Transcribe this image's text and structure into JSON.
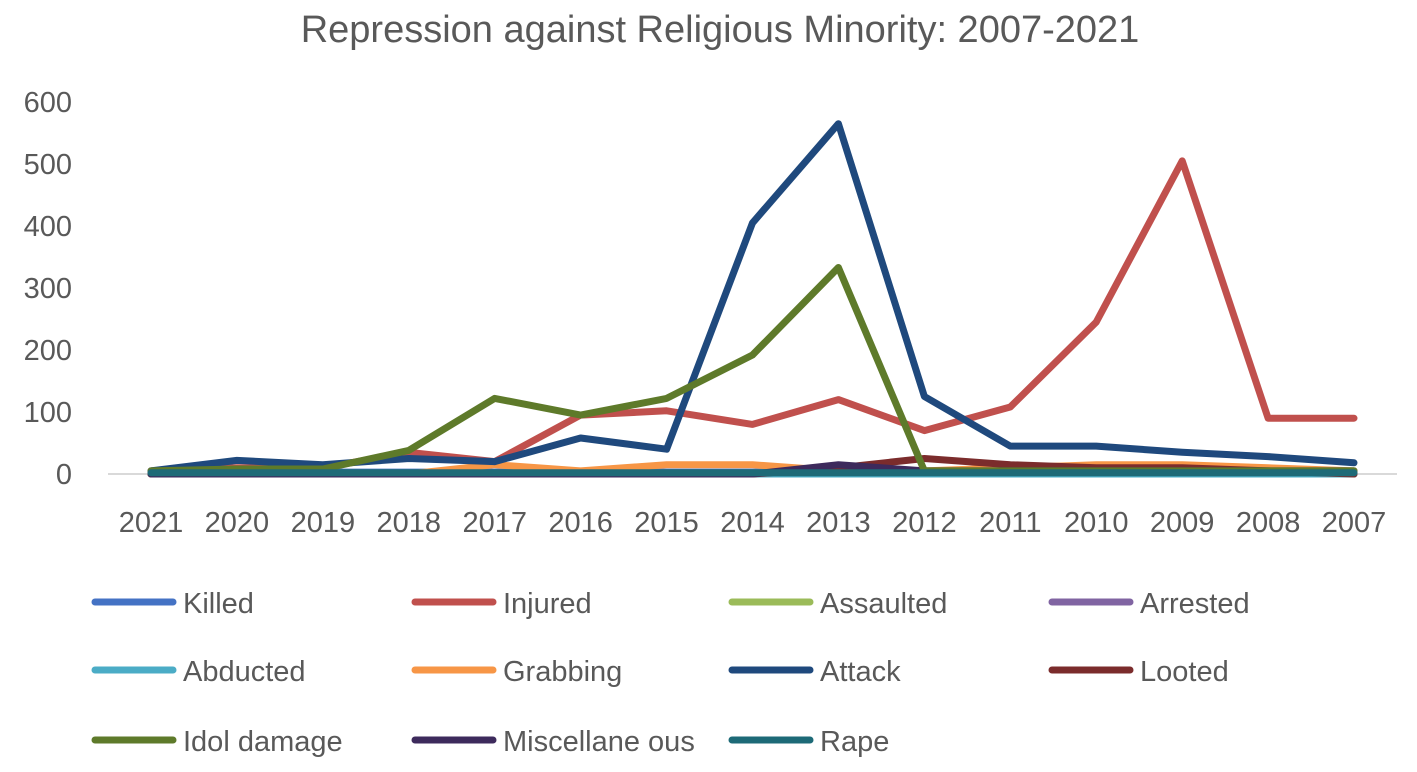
{
  "chart_data": {
    "type": "line",
    "title": "Repression against Religious Minority: 2007-2021",
    "xlabel": "",
    "ylabel": "",
    "ylim": [
      0,
      600
    ],
    "yticks": [
      "0",
      "100",
      "200",
      "300",
      "400",
      "500",
      "600"
    ],
    "grid": false,
    "legend_position": "bottom",
    "categories": [
      "2021",
      "2020",
      "2019",
      "2018",
      "2017",
      "2016",
      "2015",
      "2014",
      "2013",
      "2012",
      "2011",
      "2010",
      "2009",
      "2008",
      "2007"
    ],
    "series": [
      {
        "name": "Killed",
        "color": "#4472C4",
        "values": [
          2,
          3,
          3,
          3,
          3,
          3,
          3,
          3,
          3,
          3,
          3,
          3,
          3,
          3,
          3
        ]
      },
      {
        "name": "Injured",
        "color": "#C0504D",
        "values": [
          5,
          10,
          10,
          35,
          20,
          95,
          102,
          80,
          120,
          70,
          108,
          245,
          505,
          90,
          90
        ]
      },
      {
        "name": "Assaulted",
        "color": "#9BBB59",
        "values": [
          0,
          0,
          0,
          0,
          0,
          0,
          0,
          0,
          0,
          0,
          0,
          0,
          0,
          0,
          0
        ]
      },
      {
        "name": "Arrested",
        "color": "#8064A2",
        "values": [
          0,
          0,
          0,
          0,
          0,
          0,
          0,
          0,
          0,
          0,
          0,
          0,
          0,
          0,
          0
        ]
      },
      {
        "name": "Abducted",
        "color": "#4BACC6",
        "values": [
          0,
          0,
          0,
          0,
          0,
          0,
          0,
          0,
          0,
          0,
          0,
          0,
          0,
          0,
          0
        ]
      },
      {
        "name": "Grabbing",
        "color": "#F79646",
        "values": [
          0,
          0,
          0,
          0,
          15,
          5,
          15,
          15,
          5,
          5,
          10,
          15,
          15,
          10,
          5
        ]
      },
      {
        "name": "Attack",
        "color": "#1F497D",
        "values": [
          5,
          22,
          15,
          25,
          20,
          58,
          40,
          405,
          565,
          125,
          45,
          45,
          35,
          28,
          18
        ]
      },
      {
        "name": "Looted",
        "color": "#7B2C2C",
        "values": [
          0,
          0,
          0,
          0,
          0,
          0,
          0,
          0,
          10,
          25,
          15,
          10,
          10,
          5,
          0
        ]
      },
      {
        "name": "Idol damage",
        "color": "#5E7A2A",
        "values": [
          5,
          8,
          8,
          38,
          122,
          95,
          122,
          192,
          333,
          5,
          5,
          5,
          5,
          5,
          5
        ]
      },
      {
        "name": "Miscellane ous",
        "color": "#3D2A5C",
        "values": [
          0,
          0,
          0,
          0,
          0,
          0,
          0,
          0,
          15,
          5,
          5,
          5,
          5,
          5,
          5
        ]
      },
      {
        "name": "Rape",
        "color": "#1D6A77",
        "values": [
          2,
          2,
          2,
          2,
          2,
          2,
          2,
          2,
          2,
          2,
          2,
          2,
          2,
          2,
          2
        ]
      }
    ]
  }
}
